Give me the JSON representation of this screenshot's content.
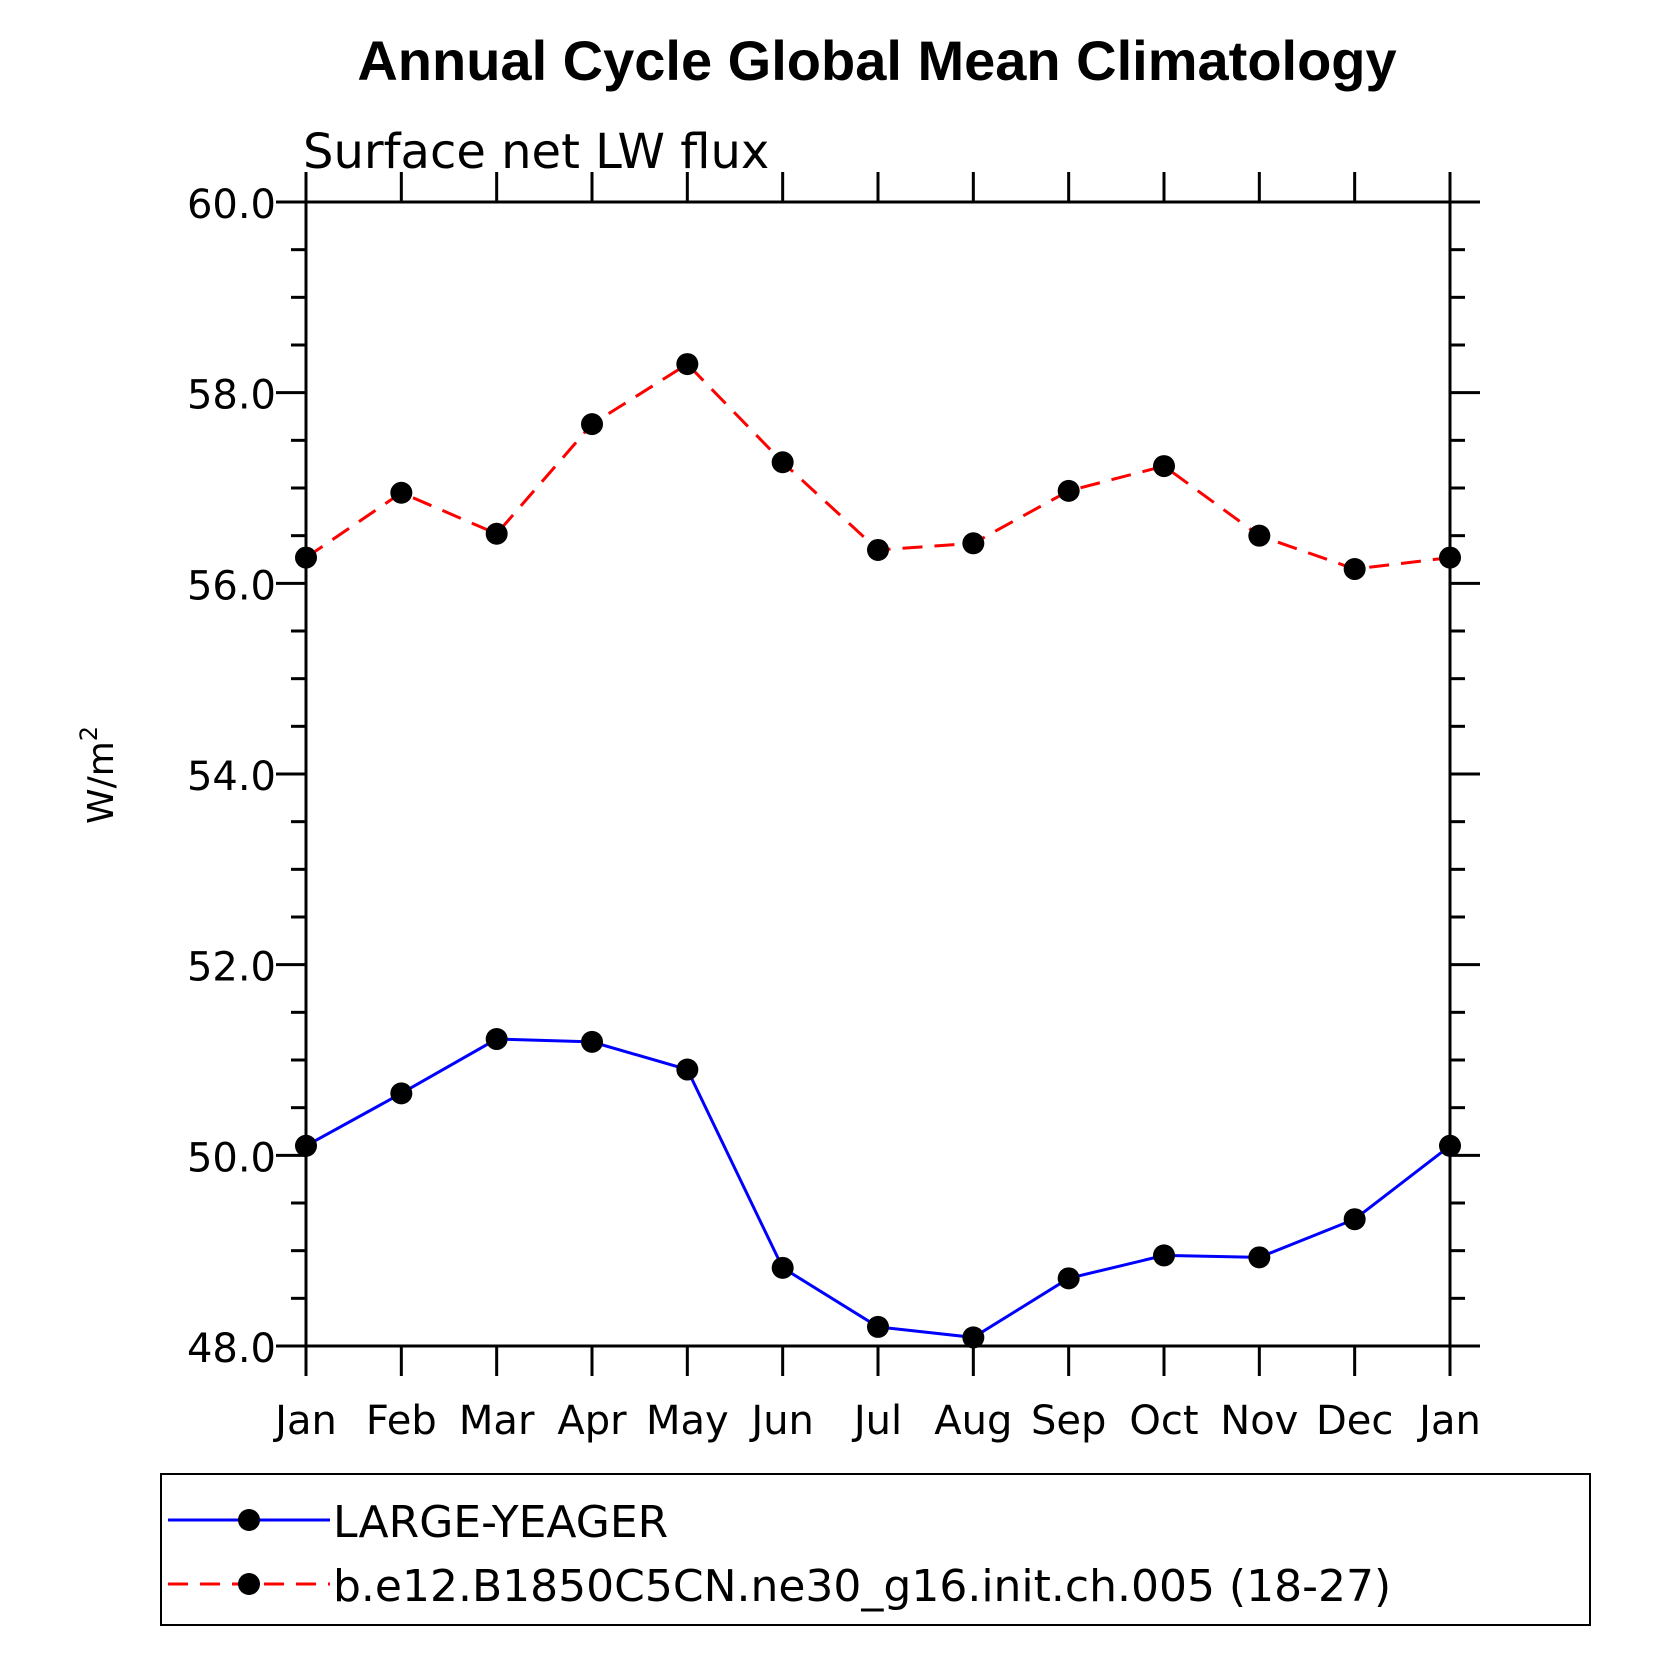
{
  "chart_data": {
    "type": "line",
    "title": "Annual Cycle Global Mean Climatology",
    "subtitle": "Surface net LW flux",
    "xlabel": "",
    "ylabel": "W/m",
    "ylabel_superscript": "2",
    "categories": [
      "Jan",
      "Feb",
      "Mar",
      "Apr",
      "May",
      "Jun",
      "Jul",
      "Aug",
      "Sep",
      "Oct",
      "Nov",
      "Dec",
      "Jan"
    ],
    "ylim": [
      48.0,
      60.0
    ],
    "yticks_major": [
      "48.0",
      "50.0",
      "52.0",
      "54.0",
      "56.0",
      "58.0",
      "60.0"
    ],
    "yticks_minor_step": 0.5,
    "grid": false,
    "legend_position": "bottom",
    "series": [
      {
        "name": "LARGE-YEAGER",
        "color": "#0000ff",
        "dash": "solid",
        "marker": "filled-circle",
        "values": [
          50.1,
          50.65,
          51.22,
          51.19,
          50.9,
          48.82,
          48.2,
          48.09,
          48.71,
          48.95,
          48.93,
          49.33,
          50.1
        ]
      },
      {
        "name": "b.e12.B1850C5CN.ne30_g16.init.ch.005 (18-27)",
        "color": "#ff0000",
        "dash": "dashed",
        "marker": "filled-circle",
        "values": [
          56.27,
          56.95,
          56.52,
          57.67,
          58.3,
          57.27,
          56.35,
          56.42,
          56.97,
          57.23,
          56.5,
          56.15,
          56.27
        ]
      }
    ]
  }
}
